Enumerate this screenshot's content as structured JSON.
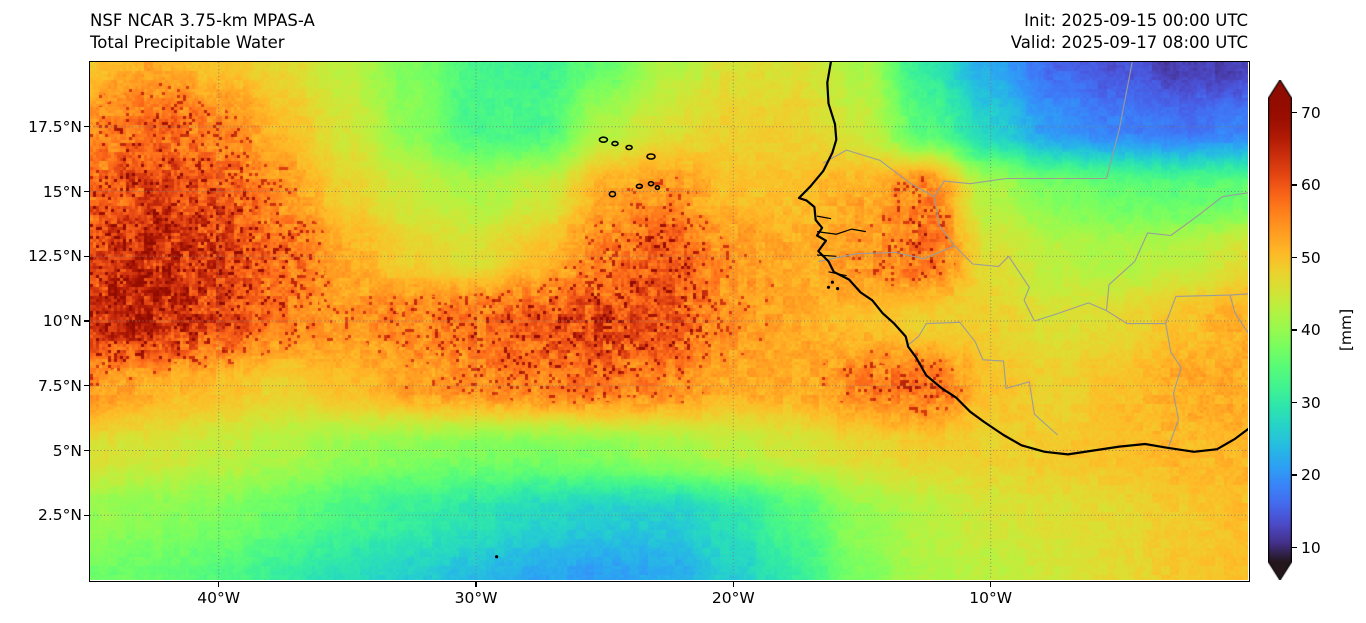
{
  "header": {
    "title_line1": "NSF NCAR 3.75-km MPAS-A",
    "title_line2": "Total Precipitable Water",
    "init_label": "Init: 2025-09-15 00:00 UTC",
    "valid_label": "Valid: 2025-09-17 08:00 UTC"
  },
  "chart_data": {
    "type": "heatmap",
    "title": "Total Precipitable Water",
    "model": "NSF NCAR 3.75-km MPAS-A",
    "init": "2025-09-15 00:00 UTC",
    "valid": "2025-09-17 08:00 UTC",
    "units": "mm",
    "colormap": "turbo",
    "vmin": 8,
    "vmax": 72,
    "lon_range": [
      -45,
      0
    ],
    "lat_range": [
      0,
      20
    ],
    "x_ticks": [
      {
        "lon": -40,
        "label": "40°W"
      },
      {
        "lon": -30,
        "label": "30°W"
      },
      {
        "lon": -20,
        "label": "20°W"
      },
      {
        "lon": -10,
        "label": "10°W"
      }
    ],
    "y_ticks": [
      {
        "lat": 17.5,
        "label": "17.5°N"
      },
      {
        "lat": 15,
        "label": "15°N"
      },
      {
        "lat": 12.5,
        "label": "12.5°N"
      },
      {
        "lat": 10,
        "label": "10°N"
      },
      {
        "lat": 7.5,
        "label": "7.5°N"
      },
      {
        "lat": 5,
        "label": "5°N"
      },
      {
        "lat": 2.5,
        "label": "2.5°N"
      }
    ],
    "colorbar": {
      "label": "[mm]",
      "ticks": [
        70,
        60,
        50,
        40,
        30,
        20,
        10
      ],
      "extend": "both",
      "position": "right"
    },
    "gridlines": true,
    "grid_lons": [
      -45,
      -42.5,
      -40,
      -37.5,
      -35,
      -32.5,
      -30,
      -27.5,
      -25,
      -22.5,
      -20,
      -17.5,
      -15,
      -12.5,
      -10,
      -7.5,
      -5,
      -2.5,
      0
    ],
    "grid_lats": [
      20,
      17.5,
      15,
      12.5,
      10,
      7.5,
      5,
      2.5,
      0
    ],
    "values": [
      [
        50,
        52,
        50,
        47,
        43,
        38,
        33,
        32,
        36,
        42,
        46,
        46,
        42,
        30,
        22,
        16,
        14,
        12,
        12
      ],
      [
        55,
        58,
        56,
        50,
        45,
        39,
        33,
        33,
        42,
        46,
        48,
        48,
        44,
        34,
        26,
        20,
        18,
        17,
        18
      ],
      [
        58,
        62,
        60,
        54,
        48,
        44,
        42,
        44,
        52,
        54,
        50,
        50,
        52,
        56,
        42,
        38,
        36,
        35,
        36
      ],
      [
        62,
        65,
        63,
        58,
        52,
        48,
        46,
        50,
        56,
        60,
        54,
        52,
        54,
        58,
        46,
        43,
        42,
        43,
        46
      ],
      [
        64,
        66,
        62,
        56,
        54,
        56,
        58,
        60,
        62,
        60,
        54,
        52,
        50,
        48,
        48,
        46,
        47,
        50,
        52
      ],
      [
        54,
        52,
        50,
        48,
        50,
        53,
        55,
        56,
        57,
        55,
        52,
        52,
        56,
        58,
        50,
        48,
        50,
        52,
        52
      ],
      [
        46,
        45,
        44,
        42,
        40,
        39,
        38,
        38,
        39,
        41,
        43,
        45,
        47,
        48,
        48,
        49,
        50,
        51,
        51
      ],
      [
        40,
        39,
        38,
        36,
        33,
        31,
        29,
        27,
        26,
        26,
        29,
        34,
        40,
        43,
        45,
        46,
        47,
        49,
        50
      ],
      [
        37,
        36,
        34,
        31,
        28,
        26,
        24,
        22,
        21,
        22,
        26,
        31,
        38,
        42,
        43,
        45,
        47,
        49,
        50
      ]
    ]
  }
}
